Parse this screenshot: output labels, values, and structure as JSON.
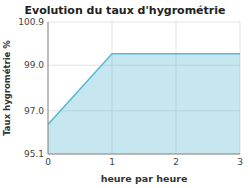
{
  "chart_data": {
    "type": "area",
    "title": "Evolution du taux d'hygrométrie",
    "xlabel": "heure par heure",
    "ylabel": "Taux hygrométrie %",
    "x": [
      0,
      1,
      2,
      3
    ],
    "values": [
      96.4,
      99.5,
      99.5,
      99.5
    ],
    "xlim": [
      0,
      3
    ],
    "ylim": [
      95.1,
      100.9
    ],
    "xticks": [
      0,
      1,
      2,
      3
    ],
    "yticks": [
      95.1,
      {
        "value": 97.0,
        "label": "97.0"
      },
      {
        "value": 99.0,
        "label": "99.0"
      },
      100.9
    ],
    "grid": true,
    "color": "#5bb8d4"
  }
}
